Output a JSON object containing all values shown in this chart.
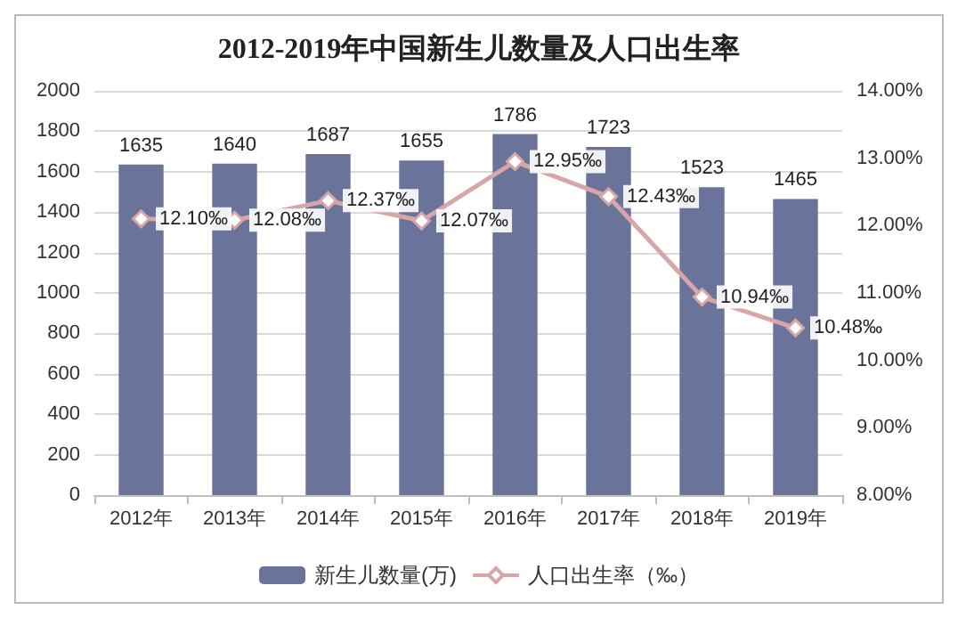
{
  "chart_data": {
    "type": "bar",
    "title": "2012-2019年中国新生儿数量及人口出生率",
    "categories": [
      "2012年",
      "2013年",
      "2014年",
      "2015年",
      "2016年",
      "2017年",
      "2018年",
      "2019年"
    ],
    "series": [
      {
        "name": "新生儿数量(万)",
        "color": "#6a7399",
        "values": [
          1635,
          1640,
          1687,
          1655,
          1786,
          1723,
          1523,
          1465
        ],
        "value_labels": [
          "1635",
          "1640",
          "1687",
          "1655",
          "1786",
          "1723",
          "1523",
          "1465"
        ]
      },
      {
        "name": "人口出生率（‰）",
        "type": "line",
        "axis": "y2",
        "color": "#d9a6a8",
        "marker": "diamond",
        "values": [
          12.1,
          12.08,
          12.37,
          12.07,
          12.95,
          12.43,
          10.94,
          10.48
        ],
        "value_labels": [
          "12.10‰",
          "12.08‰",
          "12.37‰",
          "12.07‰",
          "12.95‰",
          "12.43‰",
          "10.94‰",
          "10.48‰"
        ]
      }
    ],
    "ylim": [
      0,
      2000
    ],
    "yticks": [
      0,
      200,
      400,
      600,
      800,
      1000,
      1200,
      1400,
      1600,
      1800,
      2000
    ],
    "y2lim": [
      8,
      14
    ],
    "y2ticks": [
      {
        "value": 8,
        "label": "8.00%"
      },
      {
        "value": 9,
        "label": "9.00%"
      },
      {
        "value": 10,
        "label": "10.00%"
      },
      {
        "value": 11,
        "label": "11.00%"
      },
      {
        "value": 12,
        "label": "12.00%"
      },
      {
        "value": 13,
        "label": "13.00%"
      },
      {
        "value": 14,
        "label": "14.00%"
      }
    ],
    "grid": "y",
    "legend": "bottom"
  }
}
